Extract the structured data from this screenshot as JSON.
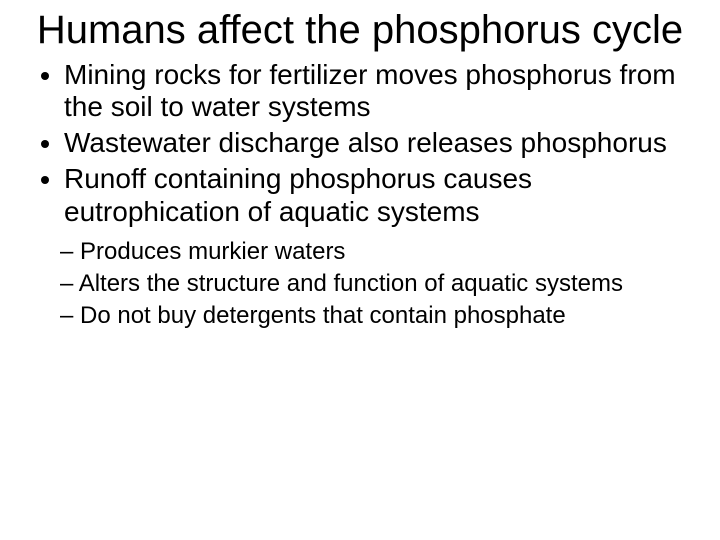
{
  "title": "Humans affect the phosphorus cycle",
  "bullets": [
    "Mining rocks for fertilizer moves phosphorus from the soil to water systems",
    "Wastewater discharge also releases phosphorus",
    "Runoff containing phosphorus causes eutrophication of aquatic systems"
  ],
  "sub_bullets": [
    "Produces murkier waters",
    "Alters the structure and function of aquatic systems",
    "Do not buy detergents that contain phosphate"
  ],
  "styling": {
    "background_color": "#ffffff",
    "text_color": "#000000",
    "font_family": "Arial",
    "title_fontsize": 40,
    "bullet_fontsize": 28,
    "sub_bullet_fontsize": 24,
    "slide_width": 720,
    "slide_height": 540
  }
}
